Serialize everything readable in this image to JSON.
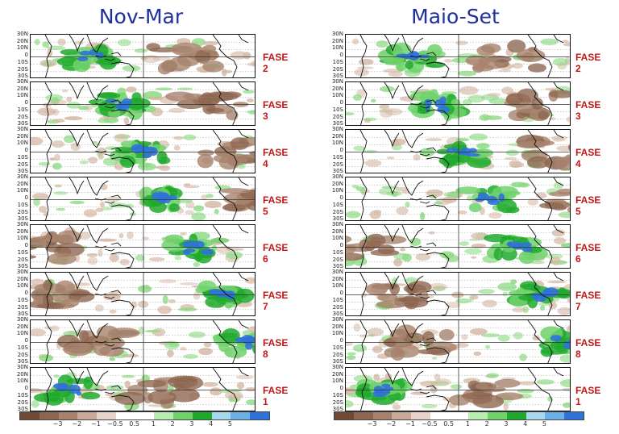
{
  "columns": [
    {
      "title": "Nov-Mar",
      "phases": [
        "FASE 2",
        "FASE 3",
        "FASE 4",
        "FASE 5",
        "FASE 6",
        "FASE 7",
        "FASE 8",
        "FASE 1"
      ]
    },
    {
      "title": "Maio-Set",
      "phases": [
        "FASE 2",
        "FASE 3",
        "FASE 4",
        "FASE 5",
        "FASE 6",
        "FASE 7",
        "FASE 8",
        "FASE 1"
      ]
    }
  ],
  "latitude_labels": [
    "30N",
    "20N",
    "10N",
    "0",
    "10S",
    "20S",
    "30S"
  ],
  "colorbar": {
    "colors": [
      "#6e4a36",
      "#8e6650",
      "#a8826c",
      "#c8a898",
      "#e6d2c8",
      "#ffffff",
      "#ffffff",
      "#b8ecb0",
      "#6ed46a",
      "#1faa2c",
      "#a8d8ee",
      "#6cb0e8",
      "#2f72d8"
    ],
    "tick_labels": [
      "−3",
      "−2",
      "−1",
      "−0.5",
      "0.5",
      "1",
      "2",
      "3",
      "4",
      "5"
    ]
  },
  "colors": {
    "title": "#1f2f9e",
    "phase_label": "#c01818",
    "dry": "#a8826c",
    "wet": "#1faa2c",
    "very_wet": "#2f72d8"
  }
}
